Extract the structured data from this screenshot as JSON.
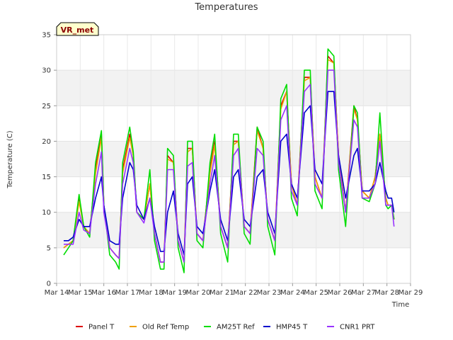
{
  "chart_data": {
    "type": "line",
    "title": "Temperatures",
    "xlabel": "Time",
    "ylabel": "Temperature (C)",
    "site_badge": "VR_met",
    "ylim": [
      0,
      35
    ],
    "yticks": [
      0,
      5,
      10,
      15,
      20,
      25,
      30,
      35
    ],
    "xlim": [
      0,
      15
    ],
    "xticks": [
      0,
      1,
      2,
      3,
      4,
      5,
      6,
      7,
      8,
      9,
      10,
      11,
      12,
      13,
      14,
      15
    ],
    "xtick_labels": [
      "Mar 14",
      "Mar 15",
      "Mar 16",
      "Mar 17",
      "Mar 18",
      "Mar 19",
      "Mar 20",
      "Mar 21",
      "Mar 22",
      "Mar 23",
      "Mar 24",
      "Mar 25",
      "Mar 26",
      "Mar 27",
      "Mar 28",
      "Mar 29"
    ],
    "x_units": "days since Mar 14 00:00",
    "series": [
      {
        "name": "Panel T",
        "color": "#dd0000",
        "x": [
          0.3,
          0.5,
          0.7,
          0.95,
          1.15,
          1.4,
          1.65,
          1.9,
          2.0,
          2.25,
          2.5,
          2.65,
          2.8,
          3.1,
          3.25,
          3.4,
          3.7,
          3.95,
          4.15,
          4.4,
          4.55,
          4.7,
          4.95,
          5.15,
          5.4,
          5.55,
          5.75,
          5.95,
          6.2,
          6.5,
          6.7,
          6.95,
          7.25,
          7.5,
          7.7,
          7.95,
          8.2,
          8.5,
          8.75,
          8.95,
          9.25,
          9.5,
          9.75,
          9.95,
          10.2,
          10.5,
          10.75,
          10.95,
          11.25,
          11.5,
          11.75,
          11.95,
          12.25,
          12.6,
          12.75,
          12.95,
          13.25,
          13.5,
          13.7,
          13.95,
          14.05,
          14.2,
          14.3
        ],
        "y": [
          5.0,
          5.5,
          6.0,
          12.0,
          8.0,
          7.0,
          16.0,
          21.0,
          11.0,
          5.0,
          4.0,
          3.5,
          16.0,
          21.0,
          18.0,
          10.0,
          9.0,
          14.0,
          7.0,
          3.0,
          3.0,
          18.0,
          17.0,
          6.0,
          3.0,
          19.0,
          19.0,
          7.0,
          6.0,
          16.0,
          20.0,
          8.0,
          5.0,
          20.0,
          20.0,
          8.0,
          7.0,
          22.0,
          19.0,
          9.0,
          6.0,
          25.0,
          27.0,
          14.0,
          11.0,
          29.0,
          29.0,
          15.0,
          12.0,
          32.0,
          31.0,
          18.0,
          10.0,
          25.0,
          23.0,
          13.0,
          12.0,
          15.0,
          21.0,
          12.0,
          11.0,
          11.0,
          9.0
        ]
      },
      {
        "name": "Old Ref Temp",
        "color": "#f0a000",
        "x": [
          0.3,
          0.5,
          0.7,
          0.95,
          1.15,
          1.4,
          1.65,
          1.9,
          2.0,
          2.25,
          2.5,
          2.65,
          2.8,
          3.1,
          3.25,
          3.4,
          3.7,
          3.95,
          4.15,
          4.4,
          4.55,
          4.7,
          4.95,
          5.15,
          5.4,
          5.55,
          5.75,
          5.95,
          6.2,
          6.5,
          6.7,
          6.95,
          7.25,
          7.5,
          7.7,
          7.95,
          8.2,
          8.5,
          8.75,
          8.95,
          9.25,
          9.5,
          9.75,
          9.95,
          10.2,
          10.5,
          10.75,
          10.95,
          11.25,
          11.5,
          11.75,
          11.95,
          12.25,
          12.6,
          12.75,
          12.95,
          13.25,
          13.5,
          13.7,
          13.95,
          14.05,
          14.2,
          14.3
        ],
        "y": [
          5.0,
          5.5,
          6.0,
          11.5,
          8.0,
          7.0,
          15.5,
          20.5,
          11.0,
          5.0,
          4.0,
          3.5,
          15.5,
          20.5,
          18.0,
          10.0,
          9.0,
          14.0,
          7.0,
          3.0,
          3.0,
          17.5,
          17.0,
          6.0,
          3.0,
          18.5,
          19.0,
          7.0,
          6.0,
          15.5,
          19.5,
          8.0,
          5.0,
          19.5,
          20.0,
          8.0,
          7.0,
          21.5,
          19.0,
          9.0,
          6.0,
          24.5,
          27.0,
          14.0,
          11.0,
          28.5,
          29.0,
          15.0,
          12.0,
          31.5,
          31.0,
          18.0,
          10.0,
          24.5,
          23.0,
          13.0,
          12.0,
          15.0,
          21.0,
          12.0,
          11.0,
          11.0,
          9.0
        ]
      },
      {
        "name": "AM25T Ref",
        "color": "#00dd00",
        "x": [
          0.3,
          0.5,
          0.7,
          0.95,
          1.15,
          1.4,
          1.65,
          1.9,
          2.0,
          2.25,
          2.5,
          2.65,
          2.8,
          3.1,
          3.25,
          3.4,
          3.7,
          3.95,
          4.15,
          4.4,
          4.55,
          4.7,
          4.95,
          5.15,
          5.4,
          5.55,
          5.75,
          5.95,
          6.2,
          6.5,
          6.7,
          6.95,
          7.25,
          7.5,
          7.7,
          7.95,
          8.2,
          8.5,
          8.75,
          8.95,
          9.25,
          9.5,
          9.75,
          9.95,
          10.2,
          10.5,
          10.75,
          10.95,
          11.25,
          11.5,
          11.75,
          11.95,
          12.25,
          12.6,
          12.75,
          12.95,
          13.25,
          13.5,
          13.7,
          13.95,
          14.05,
          14.2,
          14.3
        ],
        "y": [
          4.0,
          5.0,
          6.0,
          12.5,
          8.0,
          6.5,
          17.0,
          21.5,
          11.0,
          4.0,
          3.0,
          2.0,
          17.0,
          22.0,
          18.5,
          10.0,
          9.0,
          16.0,
          6.0,
          2.0,
          2.0,
          19.0,
          18.0,
          5.0,
          1.5,
          20.0,
          20.0,
          6.0,
          5.0,
          17.0,
          21.0,
          7.0,
          3.0,
          21.0,
          21.0,
          7.0,
          5.5,
          22.0,
          20.0,
          8.0,
          4.0,
          26.0,
          28.0,
          12.0,
          9.5,
          30.0,
          30.0,
          13.0,
          10.5,
          33.0,
          32.0,
          16.0,
          8.0,
          25.0,
          24.0,
          12.0,
          11.5,
          14.0,
          24.0,
          11.0,
          10.5,
          11.0,
          9.0
        ]
      },
      {
        "name": "HMP45 T",
        "color": "#0000cc",
        "x": [
          0.3,
          0.5,
          0.7,
          0.95,
          1.15,
          1.4,
          1.65,
          1.9,
          2.0,
          2.25,
          2.5,
          2.65,
          2.8,
          3.1,
          3.25,
          3.4,
          3.7,
          3.95,
          4.15,
          4.4,
          4.55,
          4.7,
          4.95,
          5.15,
          5.4,
          5.55,
          5.75,
          5.95,
          6.2,
          6.5,
          6.7,
          6.95,
          7.25,
          7.5,
          7.7,
          7.95,
          8.2,
          8.5,
          8.75,
          8.95,
          9.25,
          9.5,
          9.75,
          9.95,
          10.2,
          10.5,
          10.75,
          10.95,
          11.25,
          11.5,
          11.75,
          11.95,
          12.25,
          12.6,
          12.75,
          12.95,
          13.25,
          13.5,
          13.7,
          13.95,
          14.05,
          14.2,
          14.3
        ],
        "y": [
          6.0,
          6.0,
          6.5,
          9.0,
          8.0,
          8.0,
          12.0,
          15.0,
          11.0,
          6.0,
          5.5,
          5.5,
          12.0,
          17.0,
          16.0,
          11.0,
          9.0,
          12.0,
          8.0,
          4.5,
          4.5,
          10.0,
          13.0,
          7.0,
          4.0,
          14.0,
          15.0,
          8.0,
          7.0,
          13.0,
          16.0,
          9.0,
          6.0,
          15.0,
          16.0,
          9.0,
          8.0,
          15.0,
          16.0,
          10.0,
          7.0,
          20.0,
          21.0,
          14.0,
          12.0,
          24.0,
          25.0,
          16.0,
          14.0,
          27.0,
          27.0,
          18.0,
          12.0,
          18.0,
          19.0,
          13.0,
          13.0,
          14.0,
          17.0,
          13.0,
          12.0,
          12.0,
          10.0
        ]
      },
      {
        "name": "CNR1 PRT",
        "color": "#9933ff",
        "x": [
          0.3,
          0.5,
          0.7,
          0.95,
          1.15,
          1.4,
          1.65,
          1.9,
          2.0,
          2.25,
          2.5,
          2.65,
          2.8,
          3.1,
          3.25,
          3.4,
          3.7,
          3.95,
          4.15,
          4.4,
          4.55,
          4.7,
          4.95,
          5.15,
          5.4,
          5.55,
          5.75,
          5.95,
          6.2,
          6.5,
          6.7,
          6.95,
          7.25,
          7.5,
          7.7,
          7.95,
          8.2,
          8.5,
          8.75,
          8.95,
          9.25,
          9.5,
          9.75,
          9.95,
          10.2,
          10.5,
          10.75,
          10.95,
          11.25,
          11.5,
          11.75,
          11.95,
          12.25,
          12.6,
          12.75,
          12.95,
          13.25,
          13.5,
          13.7,
          13.95,
          14.05,
          14.2,
          14.3
        ],
        "y": [
          5.5,
          5.5,
          5.5,
          10.0,
          7.5,
          7.0,
          14.0,
          18.5,
          10.0,
          5.0,
          4.0,
          3.5,
          14.0,
          19.0,
          17.0,
          10.0,
          8.5,
          12.0,
          7.0,
          3.0,
          3.0,
          16.0,
          16.0,
          6.0,
          3.0,
          16.5,
          17.0,
          7.0,
          6.0,
          14.0,
          18.0,
          8.0,
          5.0,
          18.0,
          19.0,
          8.0,
          7.0,
          19.0,
          18.0,
          9.0,
          6.0,
          23.0,
          25.0,
          13.0,
          11.0,
          27.0,
          28.0,
          14.0,
          12.0,
          30.0,
          30.0,
          17.0,
          10.0,
          23.0,
          22.0,
          12.0,
          12.0,
          14.0,
          20.0,
          11.0,
          11.0,
          11.0,
          8.0
        ]
      }
    ],
    "legend_position": "bottom"
  }
}
